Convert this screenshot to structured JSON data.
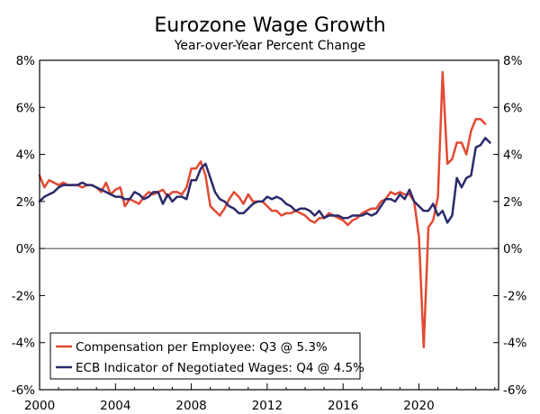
{
  "chart_data": {
    "type": "line",
    "title": "Eurozone Wage Growth",
    "subtitle": "Year-over-Year Percent Change",
    "xlabel": "",
    "ylabel": "",
    "xlim": [
      2000,
      2024.2
    ],
    "ylim": [
      -6,
      8
    ],
    "x_ticks": [
      2000,
      2004,
      2008,
      2012,
      2016,
      2020
    ],
    "y_ticks": [
      -6,
      -4,
      -2,
      0,
      2,
      4,
      6,
      8
    ],
    "y_tick_labels": [
      "-6%",
      "-4%",
      "-2%",
      "0%",
      "2%",
      "4%",
      "6%",
      "8%"
    ],
    "grid": false,
    "legend_position": "bottom-left",
    "series": [
      {
        "name": "Compensation per Employee: Q3 @ 5.3%",
        "color": "#e24a33",
        "points": [
          [
            2000.0,
            3.1
          ],
          [
            2000.25,
            2.6
          ],
          [
            2000.5,
            2.9
          ],
          [
            2000.75,
            2.8
          ],
          [
            2001.0,
            2.7
          ],
          [
            2001.25,
            2.8
          ],
          [
            2001.5,
            2.7
          ],
          [
            2001.75,
            2.7
          ],
          [
            2002.0,
            2.7
          ],
          [
            2002.25,
            2.6
          ],
          [
            2002.5,
            2.7
          ],
          [
            2002.75,
            2.7
          ],
          [
            2003.0,
            2.6
          ],
          [
            2003.25,
            2.4
          ],
          [
            2003.5,
            2.8
          ],
          [
            2003.75,
            2.3
          ],
          [
            2004.0,
            2.5
          ],
          [
            2004.25,
            2.6
          ],
          [
            2004.5,
            1.8
          ],
          [
            2004.75,
            2.1
          ],
          [
            2005.0,
            2.0
          ],
          [
            2005.25,
            1.9
          ],
          [
            2005.5,
            2.2
          ],
          [
            2005.75,
            2.4
          ],
          [
            2006.0,
            2.3
          ],
          [
            2006.25,
            2.4
          ],
          [
            2006.5,
            2.5
          ],
          [
            2006.75,
            2.2
          ],
          [
            2007.0,
            2.4
          ],
          [
            2007.25,
            2.4
          ],
          [
            2007.5,
            2.3
          ],
          [
            2007.75,
            2.6
          ],
          [
            2008.0,
            3.4
          ],
          [
            2008.25,
            3.4
          ],
          [
            2008.5,
            3.7
          ],
          [
            2008.75,
            3.1
          ],
          [
            2009.0,
            1.8
          ],
          [
            2009.25,
            1.6
          ],
          [
            2009.5,
            1.4
          ],
          [
            2009.75,
            1.7
          ],
          [
            2010.0,
            2.1
          ],
          [
            2010.25,
            2.4
          ],
          [
            2010.5,
            2.2
          ],
          [
            2010.75,
            1.9
          ],
          [
            2011.0,
            2.3
          ],
          [
            2011.25,
            2.0
          ],
          [
            2011.5,
            2.0
          ],
          [
            2011.75,
            2.0
          ],
          [
            2012.0,
            1.8
          ],
          [
            2012.25,
            1.6
          ],
          [
            2012.5,
            1.6
          ],
          [
            2012.75,
            1.4
          ],
          [
            2013.0,
            1.5
          ],
          [
            2013.25,
            1.5
          ],
          [
            2013.5,
            1.6
          ],
          [
            2013.75,
            1.5
          ],
          [
            2014.0,
            1.4
          ],
          [
            2014.25,
            1.2
          ],
          [
            2014.5,
            1.1
          ],
          [
            2014.75,
            1.3
          ],
          [
            2015.0,
            1.3
          ],
          [
            2015.25,
            1.5
          ],
          [
            2015.5,
            1.4
          ],
          [
            2015.75,
            1.3
          ],
          [
            2016.0,
            1.2
          ],
          [
            2016.25,
            1.0
          ],
          [
            2016.5,
            1.2
          ],
          [
            2016.75,
            1.3
          ],
          [
            2017.0,
            1.5
          ],
          [
            2017.25,
            1.6
          ],
          [
            2017.5,
            1.7
          ],
          [
            2017.75,
            1.7
          ],
          [
            2018.0,
            2.0
          ],
          [
            2018.25,
            2.1
          ],
          [
            2018.5,
            2.4
          ],
          [
            2018.75,
            2.3
          ],
          [
            2019.0,
            2.4
          ],
          [
            2019.25,
            2.3
          ],
          [
            2019.5,
            2.3
          ],
          [
            2019.75,
            2.0
          ],
          [
            2020.0,
            0.5
          ],
          [
            2020.25,
            -4.2
          ],
          [
            2020.5,
            0.9
          ],
          [
            2020.75,
            1.2
          ],
          [
            2021.0,
            2.2
          ],
          [
            2021.25,
            7.5
          ],
          [
            2021.5,
            3.6
          ],
          [
            2021.75,
            3.8
          ],
          [
            2022.0,
            4.5
          ],
          [
            2022.25,
            4.5
          ],
          [
            2022.5,
            4.0
          ],
          [
            2022.75,
            5.0
          ],
          [
            2023.0,
            5.5
          ],
          [
            2023.25,
            5.5
          ],
          [
            2023.5,
            5.3
          ]
        ]
      },
      {
        "name": "ECB Indicator of Negotiated Wages: Q4 @ 4.5%",
        "color": "#2b2a6b",
        "points": [
          [
            2000.0,
            2.0
          ],
          [
            2000.25,
            2.2
          ],
          [
            2000.5,
            2.3
          ],
          [
            2000.75,
            2.4
          ],
          [
            2001.0,
            2.6
          ],
          [
            2001.25,
            2.7
          ],
          [
            2001.5,
            2.7
          ],
          [
            2001.75,
            2.7
          ],
          [
            2002.0,
            2.7
          ],
          [
            2002.25,
            2.8
          ],
          [
            2002.5,
            2.7
          ],
          [
            2002.75,
            2.7
          ],
          [
            2003.0,
            2.6
          ],
          [
            2003.25,
            2.5
          ],
          [
            2003.5,
            2.4
          ],
          [
            2003.75,
            2.3
          ],
          [
            2004.0,
            2.2
          ],
          [
            2004.25,
            2.2
          ],
          [
            2004.5,
            2.1
          ],
          [
            2004.75,
            2.1
          ],
          [
            2005.0,
            2.4
          ],
          [
            2005.25,
            2.3
          ],
          [
            2005.5,
            2.1
          ],
          [
            2005.75,
            2.2
          ],
          [
            2006.0,
            2.4
          ],
          [
            2006.25,
            2.4
          ],
          [
            2006.5,
            1.9
          ],
          [
            2006.75,
            2.3
          ],
          [
            2007.0,
            2.0
          ],
          [
            2007.25,
            2.2
          ],
          [
            2007.5,
            2.2
          ],
          [
            2007.75,
            2.1
          ],
          [
            2008.0,
            2.9
          ],
          [
            2008.25,
            2.9
          ],
          [
            2008.5,
            3.4
          ],
          [
            2008.75,
            3.6
          ],
          [
            2009.0,
            3.0
          ],
          [
            2009.25,
            2.4
          ],
          [
            2009.5,
            2.1
          ],
          [
            2009.75,
            2.0
          ],
          [
            2010.0,
            1.8
          ],
          [
            2010.25,
            1.7
          ],
          [
            2010.5,
            1.5
          ],
          [
            2010.75,
            1.5
          ],
          [
            2011.0,
            1.7
          ],
          [
            2011.25,
            1.9
          ],
          [
            2011.5,
            2.0
          ],
          [
            2011.75,
            2.0
          ],
          [
            2012.0,
            2.2
          ],
          [
            2012.25,
            2.1
          ],
          [
            2012.5,
            2.2
          ],
          [
            2012.75,
            2.1
          ],
          [
            2013.0,
            1.9
          ],
          [
            2013.25,
            1.8
          ],
          [
            2013.5,
            1.6
          ],
          [
            2013.75,
            1.7
          ],
          [
            2014.0,
            1.7
          ],
          [
            2014.25,
            1.6
          ],
          [
            2014.5,
            1.4
          ],
          [
            2014.75,
            1.6
          ],
          [
            2015.0,
            1.3
          ],
          [
            2015.25,
            1.4
          ],
          [
            2015.5,
            1.4
          ],
          [
            2015.75,
            1.4
          ],
          [
            2016.0,
            1.3
          ],
          [
            2016.25,
            1.3
          ],
          [
            2016.5,
            1.4
          ],
          [
            2016.75,
            1.4
          ],
          [
            2017.0,
            1.4
          ],
          [
            2017.25,
            1.5
          ],
          [
            2017.5,
            1.4
          ],
          [
            2017.75,
            1.5
          ],
          [
            2018.0,
            1.8
          ],
          [
            2018.25,
            2.1
          ],
          [
            2018.5,
            2.1
          ],
          [
            2018.75,
            2.0
          ],
          [
            2019.0,
            2.3
          ],
          [
            2019.25,
            2.1
          ],
          [
            2019.5,
            2.5
          ],
          [
            2019.75,
            2.0
          ],
          [
            2020.0,
            1.8
          ],
          [
            2020.25,
            1.6
          ],
          [
            2020.5,
            1.6
          ],
          [
            2020.75,
            1.9
          ],
          [
            2021.0,
            1.4
          ],
          [
            2021.25,
            1.6
          ],
          [
            2021.5,
            1.1
          ],
          [
            2021.75,
            1.4
          ],
          [
            2022.0,
            3.0
          ],
          [
            2022.25,
            2.6
          ],
          [
            2022.5,
            3.0
          ],
          [
            2022.75,
            3.1
          ],
          [
            2023.0,
            4.3
          ],
          [
            2023.25,
            4.4
          ],
          [
            2023.5,
            4.7
          ],
          [
            2023.75,
            4.5
          ]
        ]
      }
    ]
  }
}
